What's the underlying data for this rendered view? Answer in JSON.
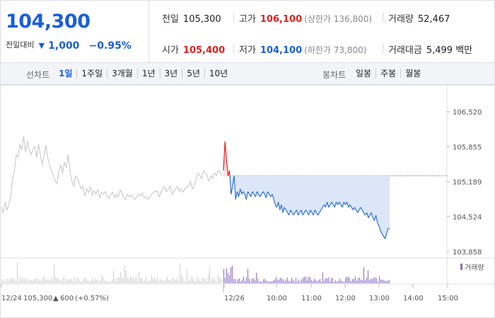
{
  "header": {
    "current_price": "104,300",
    "change_label": "전일대비",
    "change_arrow": "▼",
    "change_amount": "1,000",
    "change_percent": "−0.95%",
    "stats": {
      "prev_close": {
        "label": "전일",
        "value": "105,300"
      },
      "high": {
        "label": "고가",
        "value": "106,100",
        "sub": "(상한가 136,800)"
      },
      "volume": {
        "label": "거래량",
        "value": "52,467"
      },
      "open": {
        "label": "시가",
        "value": "105,400"
      },
      "low": {
        "label": "저가",
        "value": "104,100",
        "sub": "(하한가 73,800)"
      },
      "trade_value": {
        "label": "거래대금",
        "value": "5,499 백만"
      }
    }
  },
  "toolbar": {
    "line_chart_label": "선차트",
    "periods": [
      "1일",
      "1주일",
      "3개월",
      "1년",
      "3년",
      "5년",
      "10년"
    ],
    "active_period": "1일",
    "candle_chart_label": "봉차트",
    "candle_periods": [
      "일봉",
      "주봉",
      "월봉"
    ]
  },
  "colors": {
    "up": "#e0201e",
    "down": "#1a5ed9",
    "prev_day_line": "#c4c4c4",
    "today_line": "#2f6fd6",
    "area_fill": "#dbe7f8"
  },
  "chart_data": {
    "type": "line",
    "y_ticks": [
      "106,520",
      "105,855",
      "105,189",
      "104,524",
      "103,858"
    ],
    "ylim": [
      103858,
      106520
    ],
    "x_ticks": [
      "12/24",
      "12/26",
      "10:00",
      "11:00",
      "12:00",
      "13:00",
      "14:00",
      "15:00"
    ],
    "prev_day_info": {
      "date": "12/24",
      "close": "105,300",
      "arrow": "▲",
      "change": "600",
      "percent": "(+0.57%)"
    },
    "baseline": 105300,
    "volume_legend": "거래량",
    "series": [
      {
        "day": "prev",
        "values": [
          104710,
          104590,
          104800,
          104650,
          104760,
          104900,
          105220,
          105400,
          105700,
          105650,
          105900,
          105800,
          106050,
          105750,
          105950,
          105800,
          105700,
          105800,
          105850,
          105650,
          105900,
          105700,
          105500,
          105700,
          105880,
          105650,
          105500,
          105400,
          105300,
          105200,
          105150,
          105400,
          105500,
          105350,
          105550,
          105450,
          105700,
          105400,
          105200,
          105100,
          105300,
          105250,
          105150,
          105050,
          105100,
          104920,
          105050,
          104980,
          105090,
          104930,
          105020,
          104950,
          105030,
          104880,
          104990,
          104950,
          105000,
          104900,
          104870,
          104950,
          104990,
          104880,
          104950,
          104900,
          105030,
          104980,
          104880,
          104850,
          104950,
          104900,
          104930,
          104890,
          104850,
          104900,
          104950,
          104920,
          104970,
          104880,
          104900,
          104850,
          104900,
          104950,
          104990,
          105000,
          105020,
          104900,
          104980,
          105050,
          105090,
          105000,
          105050,
          105100,
          104950,
          105000,
          105050,
          105100,
          105000,
          105050,
          104990,
          105050,
          105100,
          105100,
          105200,
          105050,
          105100,
          105250,
          105350,
          105300,
          105250,
          105400,
          105350,
          105300,
          105200,
          105300,
          105250,
          105350,
          105300,
          105400,
          105380,
          105300
        ]
      },
      {
        "day": "today",
        "values": [
          105400,
          105950,
          105600,
          105300,
          105400,
          104950,
          105100,
          105300,
          104850,
          105000,
          104900,
          105050,
          104950,
          105000,
          104950,
          104850,
          105000,
          104950,
          104900,
          105000,
          104950,
          104900,
          105000,
          104950,
          104900,
          104950,
          105000,
          104950,
          104880,
          105000,
          104950,
          104900,
          104950,
          104850,
          104750,
          104700,
          104800,
          104650,
          104750,
          104600,
          104700,
          104650,
          104600,
          104550,
          104650,
          104600,
          104550,
          104600,
          104650,
          104550,
          104600,
          104650,
          104550,
          104600,
          104650,
          104600,
          104550,
          104650,
          104600,
          104550,
          104650,
          104600,
          104550,
          104600,
          104650,
          104700,
          104750,
          104700,
          104800,
          104700,
          104750,
          104800,
          104750,
          104700,
          104800,
          104750,
          104800,
          104750,
          104700,
          104800,
          104750,
          104800,
          104700,
          104750,
          104700,
          104650,
          104700,
          104650,
          104600,
          104650,
          104700,
          104650,
          104600,
          104550,
          104600,
          104500,
          104550,
          104600,
          104500,
          104450,
          104550,
          104400,
          104350,
          104250,
          104200,
          104150,
          104100,
          104200,
          104300,
          104300
        ]
      }
    ]
  }
}
